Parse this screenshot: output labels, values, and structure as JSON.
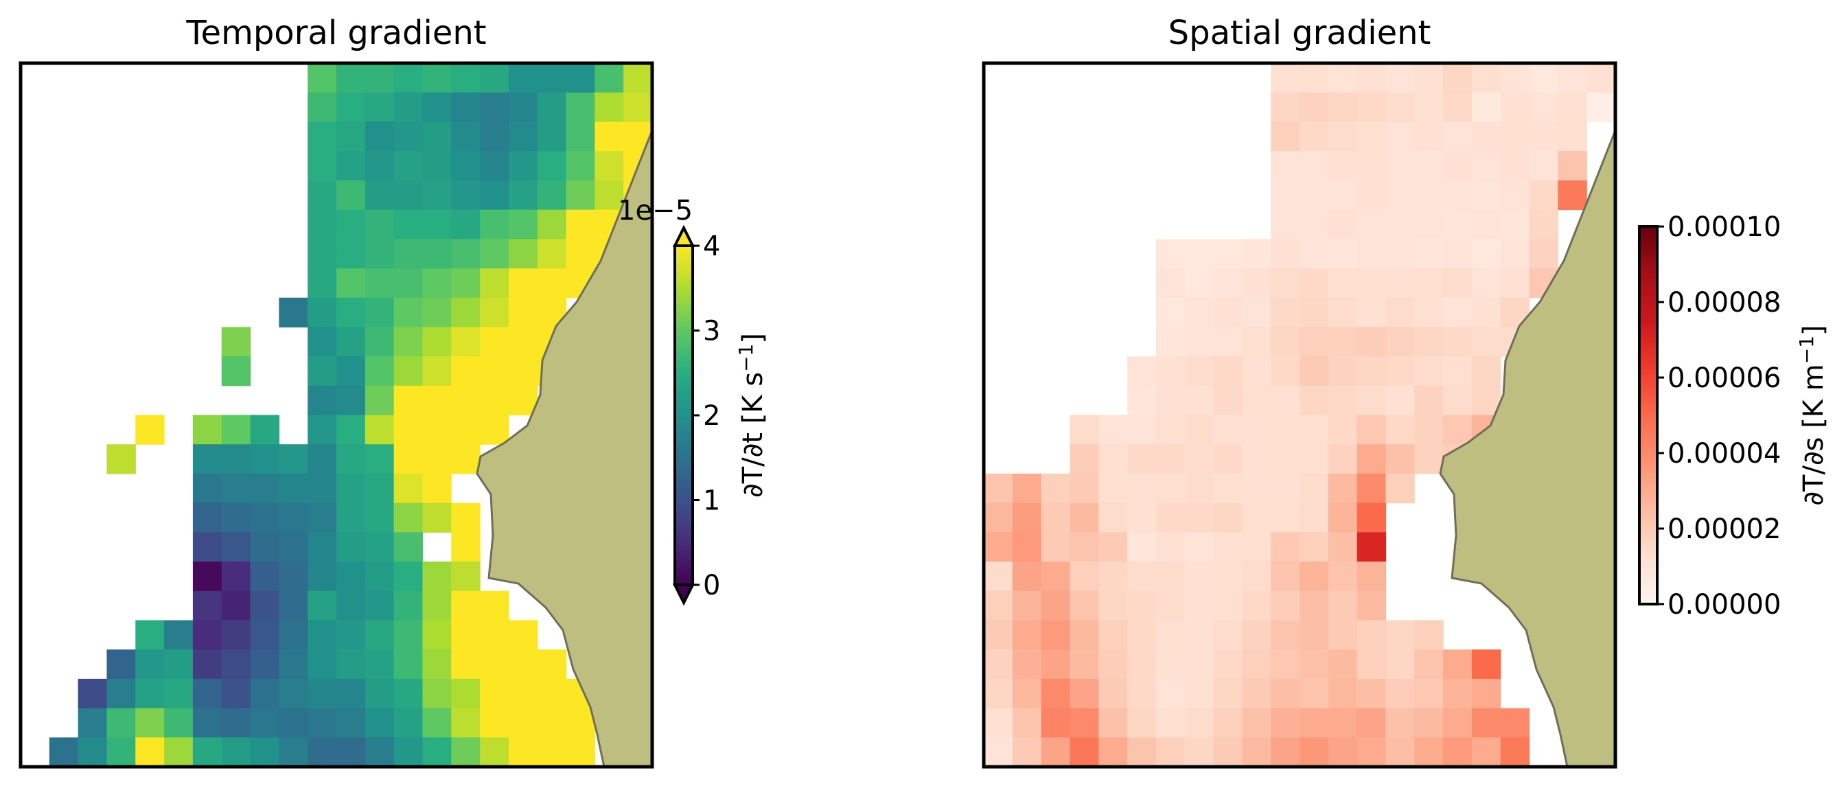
{
  "chart_data": [
    {
      "type": "heatmap",
      "title": "Temporal gradient",
      "xlabel": "",
      "ylabel": "",
      "grid": false,
      "colormap": "viridis",
      "land_color": "#bdbe80",
      "colorbar": {
        "label": "∂T/∂t [K s⁻¹]",
        "label_parts": {
          "base": "∂T/∂t [K s",
          "sup": "−1",
          "end": "]"
        },
        "offset_text": "1e−5",
        "ticks": [
          "0",
          "1",
          "2",
          "3",
          "4"
        ],
        "range": [
          0,
          4
        ],
        "scale": 1e-05,
        "extend": "both"
      },
      "values_unit_note": "x1e-5 K s-1",
      "grid_shape": [
        24,
        22
      ],
      "values": [
        [
          null,
          null,
          null,
          null,
          null,
          null,
          null,
          null,
          null,
          null,
          2.9,
          2.6,
          2.6,
          2.5,
          2.6,
          2.5,
          2.4,
          2.0,
          2.0,
          2.0,
          2.8,
          3.6
        ],
        [
          null,
          null,
          null,
          null,
          null,
          null,
          null,
          null,
          null,
          null,
          2.7,
          2.5,
          2.4,
          2.2,
          2.0,
          1.8,
          1.7,
          1.8,
          2.2,
          2.8,
          3.5,
          3.7
        ],
        [
          null,
          null,
          null,
          null,
          null,
          null,
          null,
          null,
          null,
          null,
          2.5,
          2.4,
          2.0,
          2.1,
          2.2,
          1.9,
          1.7,
          1.9,
          2.2,
          2.8,
          4.0,
          4.0
        ],
        [
          null,
          null,
          null,
          null,
          null,
          null,
          null,
          null,
          null,
          null,
          2.5,
          2.3,
          2.1,
          2.3,
          2.2,
          2.0,
          1.8,
          2.1,
          2.5,
          2.9,
          3.7,
          4.0
        ],
        [
          null,
          null,
          null,
          null,
          null,
          null,
          null,
          null,
          null,
          null,
          2.4,
          2.7,
          2.2,
          2.2,
          2.3,
          2.1,
          2.0,
          2.3,
          2.6,
          3.1,
          3.6,
          4.0
        ],
        [
          null,
          null,
          null,
          null,
          null,
          null,
          null,
          null,
          null,
          null,
          2.4,
          2.5,
          2.6,
          2.5,
          2.5,
          2.4,
          2.8,
          2.9,
          3.4,
          4.0,
          4.0,
          null
        ],
        [
          null,
          null,
          null,
          null,
          null,
          null,
          null,
          null,
          null,
          null,
          2.4,
          2.5,
          2.6,
          2.7,
          2.7,
          2.8,
          3.0,
          3.3,
          3.7,
          4.0,
          4.0,
          null
        ],
        [
          null,
          null,
          null,
          null,
          null,
          null,
          null,
          null,
          null,
          null,
          2.4,
          2.9,
          2.8,
          2.8,
          3.0,
          3.1,
          3.6,
          4.0,
          4.0,
          4.0,
          null,
          null
        ],
        [
          null,
          null,
          null,
          null,
          null,
          null,
          null,
          null,
          null,
          1.6,
          2.2,
          2.5,
          2.6,
          3.0,
          3.1,
          3.4,
          3.7,
          4.0,
          4.0,
          null,
          null,
          null
        ],
        [
          null,
          null,
          null,
          null,
          null,
          null,
          null,
          3.2,
          null,
          null,
          2.0,
          2.3,
          2.7,
          3.2,
          3.5,
          3.8,
          4.0,
          4.0,
          4.0,
          null,
          null,
          null
        ],
        [
          null,
          null,
          null,
          null,
          null,
          null,
          null,
          2.9,
          null,
          null,
          2.2,
          2.0,
          2.9,
          3.4,
          3.7,
          4.0,
          4.0,
          4.0,
          4.0,
          null,
          null,
          null
        ],
        [
          null,
          null,
          null,
          null,
          null,
          null,
          null,
          null,
          null,
          null,
          1.8,
          1.9,
          3.1,
          4.0,
          4.0,
          4.0,
          4.0,
          4.0,
          null,
          null,
          null,
          null
        ],
        [
          null,
          null,
          null,
          null,
          4.0,
          null,
          3.3,
          3.0,
          2.4,
          null,
          2.1,
          2.5,
          3.6,
          4.0,
          4.0,
          4.0,
          4.0,
          null,
          null,
          null,
          null,
          null
        ],
        [
          null,
          null,
          null,
          3.6,
          null,
          null,
          1.9,
          1.9,
          2.0,
          2.1,
          1.8,
          2.4,
          2.5,
          4.0,
          4.0,
          4.0,
          null,
          null,
          null,
          null,
          null,
          null
        ],
        [
          null,
          null,
          null,
          null,
          null,
          null,
          1.6,
          1.7,
          1.7,
          1.8,
          1.8,
          2.3,
          2.4,
          3.8,
          4.0,
          null,
          null,
          null,
          null,
          null,
          null,
          null
        ],
        [
          null,
          null,
          null,
          null,
          null,
          null,
          1.3,
          1.4,
          1.5,
          1.6,
          1.7,
          2.3,
          2.4,
          3.3,
          3.6,
          4.0,
          null,
          null,
          null,
          null,
          null,
          null
        ],
        [
          null,
          null,
          null,
          null,
          null,
          null,
          0.9,
          1.1,
          1.4,
          1.5,
          1.8,
          2.2,
          2.3,
          2.8,
          null,
          4.0,
          null,
          null,
          null,
          null,
          null,
          null
        ],
        [
          null,
          null,
          null,
          null,
          null,
          null,
          0.1,
          0.5,
          1.2,
          1.4,
          1.8,
          2.0,
          2.2,
          2.5,
          3.4,
          3.6,
          null,
          null,
          null,
          null,
          null,
          null
        ],
        [
          null,
          null,
          null,
          null,
          null,
          null,
          0.6,
          0.4,
          1.0,
          1.4,
          2.3,
          2.0,
          2.1,
          2.6,
          3.4,
          4.0,
          4.0,
          null,
          null,
          null,
          null,
          null
        ],
        [
          null,
          null,
          null,
          null,
          2.5,
          1.7,
          0.5,
          0.7,
          1.1,
          1.5,
          2.0,
          2.1,
          2.4,
          2.7,
          3.5,
          4.0,
          4.0,
          4.0,
          null,
          null,
          null,
          null
        ],
        [
          null,
          null,
          null,
          1.3,
          2.1,
          2.2,
          0.7,
          0.9,
          1.2,
          1.6,
          2.0,
          2.2,
          2.3,
          2.7,
          3.4,
          4.0,
          4.0,
          4.0,
          4.0,
          null,
          null,
          null
        ],
        [
          null,
          null,
          0.9,
          1.7,
          2.3,
          2.4,
          1.3,
          1.0,
          1.5,
          1.7,
          1.8,
          1.8,
          2.2,
          2.4,
          3.3,
          3.5,
          4.0,
          4.0,
          4.0,
          4.0,
          null,
          null
        ],
        [
          null,
          null,
          1.7,
          2.7,
          3.2,
          2.7,
          1.5,
          1.4,
          1.6,
          1.5,
          1.6,
          1.7,
          2.0,
          2.3,
          3.0,
          3.6,
          4.0,
          4.0,
          4.0,
          4.0,
          null,
          null
        ],
        [
          null,
          1.5,
          1.9,
          2.6,
          4.0,
          3.4,
          2.4,
          2.2,
          2.0,
          1.7,
          1.4,
          1.4,
          1.7,
          2.1,
          2.5,
          3.1,
          3.6,
          4.0,
          4.0,
          4.0,
          null,
          null
        ]
      ]
    },
    {
      "type": "heatmap",
      "title": "Spatial gradient",
      "xlabel": "",
      "ylabel": "",
      "grid": false,
      "colormap": "Reds",
      "land_color": "#bdbe80",
      "colorbar": {
        "label": "∂T/∂s [K m⁻¹]",
        "label_parts": {
          "base": "∂T/∂s [K m",
          "sup": "−1",
          "end": "]"
        },
        "ticks": [
          "0.00000",
          "0.00002",
          "0.00004",
          "0.00006",
          "0.00008",
          "0.00010"
        ],
        "range": [
          0,
          0.0001
        ],
        "extend": "neither"
      },
      "grid_shape": [
        24,
        22
      ],
      "values": [
        [
          null,
          null,
          null,
          null,
          null,
          null,
          null,
          null,
          null,
          null,
          1.2e-05,
          1.3e-05,
          1.1e-05,
          1.2e-05,
          1e-05,
          1.2e-05,
          1.6e-05,
          1.3e-05,
          1.1e-05,
          8e-06,
          1e-05,
          1.2e-05
        ],
        [
          null,
          null,
          null,
          null,
          null,
          null,
          null,
          null,
          null,
          null,
          1.6e-05,
          1.7e-05,
          1.6e-05,
          1.5e-05,
          1.4e-05,
          1.2e-05,
          1.5e-05,
          7e-06,
          1.2e-05,
          1.1e-05,
          1.2e-05,
          4e-06
        ],
        [
          null,
          null,
          null,
          null,
          null,
          null,
          null,
          null,
          null,
          null,
          1.8e-05,
          1.5e-05,
          1.4e-05,
          1.3e-05,
          1.1e-05,
          1.2e-05,
          1e-05,
          1.2e-05,
          1.3e-05,
          1.2e-05,
          1.3e-05,
          null
        ],
        [
          null,
          null,
          null,
          null,
          null,
          null,
          null,
          null,
          null,
          null,
          1.1e-05,
          1.1e-05,
          1.2e-05,
          1.2e-05,
          1.1e-05,
          1e-05,
          1.2e-05,
          1.1e-05,
          1.2e-05,
          1e-05,
          2.2e-05,
          null
        ],
        [
          null,
          null,
          null,
          null,
          null,
          null,
          null,
          null,
          null,
          null,
          1e-05,
          1.1e-05,
          1.1e-05,
          1.2e-05,
          1.1e-05,
          1e-05,
          1.1e-05,
          9e-06,
          1.1e-05,
          1.5e-05,
          4.5e-05,
          null
        ],
        [
          null,
          null,
          null,
          null,
          null,
          null,
          null,
          null,
          null,
          null,
          1e-05,
          1.1e-05,
          1.2e-05,
          1.1e-05,
          1e-05,
          1e-05,
          9e-06,
          1e-05,
          9e-06,
          1.6e-05,
          null,
          null
        ],
        [
          null,
          null,
          null,
          null,
          null,
          null,
          8e-06,
          8e-06,
          8e-06,
          9e-06,
          1.2e-05,
          1e-05,
          9e-06,
          1.1e-05,
          1e-05,
          9e-06,
          1e-05,
          8e-06,
          1e-05,
          1.7e-05,
          null,
          null
        ],
        [
          null,
          null,
          null,
          null,
          null,
          null,
          1e-05,
          8e-06,
          1e-05,
          1.2e-05,
          1.4e-05,
          1.5e-05,
          1.3e-05,
          1.3e-05,
          1.2e-05,
          1.3e-05,
          1.4e-05,
          1.1e-05,
          1.2e-05,
          2.1e-05,
          null,
          null
        ],
        [
          null,
          null,
          null,
          null,
          null,
          null,
          8e-06,
          1e-05,
          1.2e-05,
          1e-05,
          1.5e-05,
          1.6e-05,
          1.4e-05,
          1.2e-05,
          1.4e-05,
          1.2e-05,
          1.1e-05,
          1.2e-05,
          1.6e-05,
          null,
          null,
          null
        ],
        [
          null,
          null,
          null,
          null,
          null,
          null,
          9e-06,
          1e-05,
          1.1e-05,
          1.3e-05,
          1.6e-05,
          1.8e-05,
          1.8e-05,
          1.9e-05,
          1.7e-05,
          1.6e-05,
          1.5e-05,
          1.4e-05,
          1.4e-05,
          null,
          null,
          null
        ],
        [
          null,
          null,
          null,
          null,
          null,
          1.1e-05,
          1.2e-05,
          1.4e-05,
          1.5e-05,
          1.2e-05,
          1.5e-05,
          2e-05,
          1.7e-05,
          1.6e-05,
          1.5e-05,
          1.4e-05,
          1.3e-05,
          1.6e-05,
          null,
          null,
          null,
          null
        ],
        [
          null,
          null,
          null,
          null,
          null,
          9e-06,
          1.2e-05,
          1.2e-05,
          1.5e-05,
          1.3e-05,
          1.2e-05,
          1.6e-05,
          1.5e-05,
          1.4e-05,
          1.2e-05,
          1.7e-05,
          1.4e-05,
          1.6e-05,
          null,
          null,
          null,
          null
        ],
        [
          null,
          null,
          null,
          1.4e-05,
          1.1e-05,
          1e-05,
          1.3e-05,
          1.4e-05,
          1.2e-05,
          1.2e-05,
          1.3e-05,
          1.3e-05,
          1.5e-05,
          2.1e-05,
          1.5e-05,
          1.7e-05,
          2.1e-05,
          2.7e-05,
          null,
          null,
          null,
          null
        ],
        [
          null,
          null,
          null,
          1.9e-05,
          1.3e-05,
          1.5e-05,
          1.5e-05,
          1.4e-05,
          1.5e-05,
          1.2e-05,
          1.3e-05,
          1.3e-05,
          1.7e-05,
          3e-05,
          2.3e-05,
          1.7e-05,
          1.9e-05,
          null,
          null,
          null,
          null,
          null
        ],
        [
          2.2e-05,
          3e-05,
          1.8e-05,
          2e-05,
          1.3e-05,
          1.2e-05,
          1.3e-05,
          1.4e-05,
          1.3e-05,
          1.2e-05,
          1.2e-05,
          1.4e-05,
          2.5e-05,
          4e-05,
          1.8e-05,
          null,
          null,
          null,
          null,
          null,
          null,
          null
        ],
        [
          2.6e-05,
          3.4e-05,
          2e-05,
          2.5e-05,
          1.4e-05,
          1.2e-05,
          1.5e-05,
          1.5e-05,
          1.6e-05,
          1.3e-05,
          1.3e-05,
          1.4e-05,
          2.7e-05,
          5e-05,
          null,
          null,
          null,
          null,
          null,
          null,
          null,
          null
        ],
        [
          3e-05,
          3.5e-05,
          2e-05,
          2.2e-05,
          2e-05,
          9e-06,
          1.2e-05,
          1.1e-05,
          1.2e-05,
          1.3e-05,
          2.1e-05,
          1.8e-05,
          2.4e-05,
          7e-05,
          null,
          null,
          null,
          null,
          null,
          null,
          null,
          null
        ],
        [
          1.4e-05,
          3.2e-05,
          3e-05,
          1.8e-05,
          1.6e-05,
          1.4e-05,
          1.4e-05,
          1.2e-05,
          1.3e-05,
          1.4e-05,
          2.2e-05,
          2.7e-05,
          2.2e-05,
          2.7e-05,
          null,
          null,
          null,
          null,
          null,
          null,
          null,
          null
        ],
        [
          1.8e-05,
          2.7e-05,
          3.2e-05,
          2.2e-05,
          1.6e-05,
          1.5e-05,
          1.4e-05,
          1.2e-05,
          1.3e-05,
          1.5e-05,
          1.9e-05,
          2.4e-05,
          2e-05,
          2.5e-05,
          null,
          null,
          null,
          null,
          null,
          null,
          null,
          null
        ],
        [
          2e-05,
          3e-05,
          3.5e-05,
          2.6e-05,
          1.8e-05,
          1.5e-05,
          1.3e-05,
          1.2e-05,
          1.4e-05,
          1.7e-05,
          2.2e-05,
          2.4e-05,
          2e-05,
          1.8e-05,
          1.6e-05,
          1.8e-05,
          null,
          null,
          null,
          null,
          null,
          null
        ],
        [
          1.7e-05,
          2.8e-05,
          3.2e-05,
          2.5e-05,
          1.9e-05,
          1.5e-05,
          1.2e-05,
          1.2e-05,
          1.5e-05,
          1.8e-05,
          2.1e-05,
          2.3e-05,
          2.5e-05,
          1.8e-05,
          1.6e-05,
          2.2e-05,
          3e-05,
          5e-05,
          null,
          null,
          null,
          null
        ],
        [
          1.6e-05,
          2.6e-05,
          4e-05,
          3.2e-05,
          2e-05,
          1.5e-05,
          1.1e-05,
          1.2e-05,
          1.6e-05,
          2e-05,
          2.4e-05,
          2.2e-05,
          2.6e-05,
          2.4e-05,
          1.9e-05,
          2.1e-05,
          2.7e-05,
          3e-05,
          null,
          null,
          null,
          null
        ],
        [
          1.2e-05,
          2.2e-05,
          4.2e-05,
          4e-05,
          2.3e-05,
          1.6e-05,
          1.3e-05,
          1.4e-05,
          1.8e-05,
          2.3e-05,
          2.8e-05,
          3e-05,
          3e-05,
          3.2e-05,
          2.3e-05,
          2.5e-05,
          3e-05,
          4e-05,
          4e-05,
          null,
          null,
          null
        ],
        [
          1e-05,
          2e-05,
          3.2e-05,
          4.6e-05,
          3e-05,
          2.2e-05,
          1.8e-05,
          1.6e-05,
          2e-05,
          2.5e-05,
          3.2e-05,
          3.6e-05,
          3.2e-05,
          3e-05,
          2.4e-05,
          3e-05,
          3.5e-05,
          3e-05,
          4.5e-05,
          null,
          null,
          null
        ]
      ]
    }
  ]
}
